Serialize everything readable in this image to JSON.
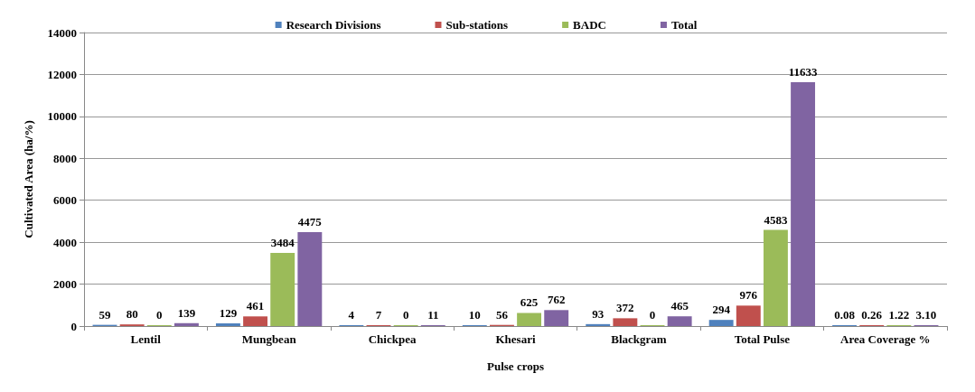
{
  "chart_data": {
    "type": "bar",
    "xlabel": "Pulse crops",
    "ylabel": "Cultivated Area (ha/%)",
    "categories": [
      "Lentil",
      "Mungbean",
      "Chickpea",
      "Khesari",
      "Blackgram",
      "Total Pulse",
      "Area Coverage %"
    ],
    "series": [
      {
        "name": "Research Divisions",
        "color": "#4f81bd",
        "values": [
          59,
          129,
          4,
          10,
          93,
          294,
          0.08
        ],
        "value_labels": [
          "59",
          "129",
          "4",
          "10",
          "93",
          "294",
          "0.08"
        ]
      },
      {
        "name": "Sub-stations",
        "color": "#c0504d",
        "values": [
          80,
          461,
          7,
          56,
          372,
          976,
          0.26
        ],
        "value_labels": [
          "80",
          "461",
          "7",
          "56",
          "372",
          "976",
          "0.26"
        ]
      },
      {
        "name": "BADC",
        "color": "#9bbb59",
        "values": [
          0,
          3484,
          0,
          625,
          0,
          4583,
          1.22
        ],
        "value_labels": [
          "0",
          "3484",
          "0",
          "625",
          "0",
          "4583",
          "1.22"
        ]
      },
      {
        "name": "Total",
        "color": "#8064a2",
        "values": [
          139,
          4475,
          11,
          762,
          465,
          11633,
          3.1
        ],
        "value_labels": [
          "139",
          "4475",
          "11",
          "762",
          "465",
          "11633",
          "3.10"
        ]
      }
    ],
    "ylim": [
      0,
      14000
    ],
    "yticks": [
      0,
      2000,
      4000,
      6000,
      8000,
      10000,
      12000,
      14000
    ],
    "grid": "y",
    "legend": "top"
  }
}
